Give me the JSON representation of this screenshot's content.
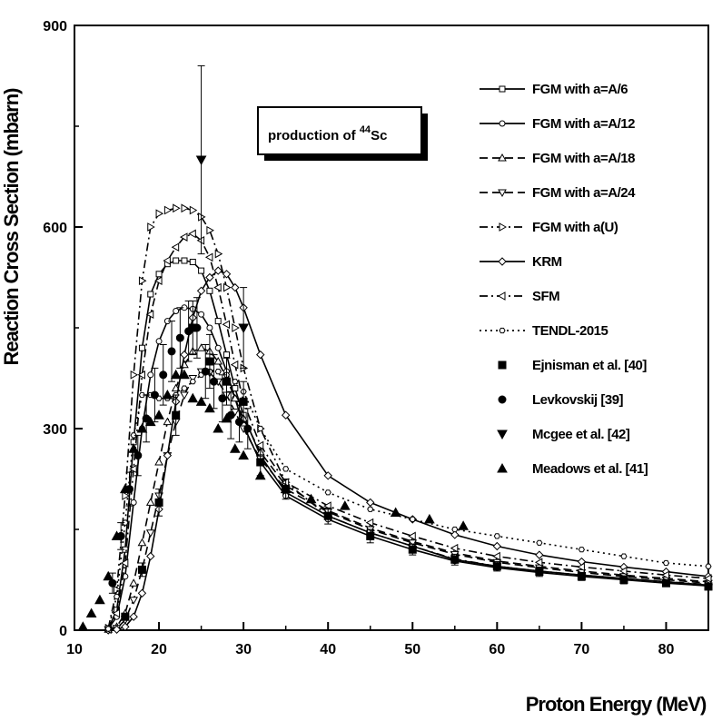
{
  "chart_data": {
    "type": "line",
    "title": "",
    "xlabel": "Proton Energy (MeV)",
    "ylabel": "Reaction Cross Section (mbarn)",
    "xlim": [
      10,
      85
    ],
    "ylim": [
      0,
      900
    ],
    "x_ticks": [
      10,
      20,
      30,
      40,
      50,
      60,
      70,
      80
    ],
    "y_ticks": [
      0,
      300,
      600,
      900
    ],
    "grid": false,
    "legend_position": "right",
    "annotation": {
      "prefix": "production of ",
      "superscript": "44",
      "suffix": "Sc"
    },
    "series": [
      {
        "name": "FGM with a=A/6",
        "style": "solid",
        "marker": "square",
        "x": [
          14,
          15,
          16,
          17,
          18,
          19,
          20,
          21,
          22,
          23,
          24,
          25,
          26,
          27,
          28,
          29,
          30,
          32,
          35,
          40,
          45,
          50,
          55,
          60,
          65,
          70,
          75,
          80,
          85
        ],
        "y": [
          2,
          30,
          120,
          280,
          420,
          500,
          530,
          545,
          550,
          550,
          548,
          535,
          505,
          460,
          410,
          360,
          320,
          260,
          205,
          170,
          145,
          125,
          105,
          95,
          88,
          82,
          77,
          72,
          67
        ]
      },
      {
        "name": "FGM with a=A/12",
        "style": "solid",
        "marker": "circle",
        "x": [
          14,
          15,
          16,
          17,
          18,
          19,
          20,
          21,
          22,
          23,
          24,
          25,
          26,
          27,
          28,
          29,
          30,
          32,
          35,
          40,
          45,
          50,
          55,
          60,
          65,
          70,
          75,
          80,
          85
        ],
        "y": [
          2,
          20,
          80,
          190,
          300,
          380,
          430,
          460,
          475,
          480,
          478,
          470,
          450,
          420,
          385,
          345,
          305,
          250,
          200,
          165,
          140,
          120,
          103,
          93,
          86,
          80,
          75,
          70,
          66
        ]
      },
      {
        "name": "FGM with a=A/18",
        "style": "dash",
        "marker": "triangle-up",
        "x": [
          14,
          15,
          16,
          17,
          18,
          19,
          20,
          21,
          22,
          23,
          24,
          25,
          26,
          27,
          28,
          29,
          30,
          32,
          35,
          40,
          45,
          50,
          55,
          60,
          65,
          70,
          75,
          80,
          85
        ],
        "y": [
          1,
          5,
          25,
          70,
          130,
          190,
          250,
          310,
          360,
          395,
          415,
          420,
          415,
          400,
          375,
          345,
          315,
          265,
          215,
          178,
          152,
          132,
          115,
          103,
          95,
          88,
          82,
          77,
          72
        ]
      },
      {
        "name": "FGM with a=A/24",
        "style": "dash",
        "marker": "triangle-down",
        "x": [
          14,
          15,
          16,
          17,
          18,
          19,
          20,
          21,
          22,
          23,
          24,
          25,
          26,
          27,
          28,
          29,
          30,
          32,
          35,
          40,
          45,
          50,
          55,
          60,
          65,
          70,
          75,
          80,
          85
        ],
        "y": [
          1,
          3,
          15,
          45,
          90,
          145,
          200,
          260,
          310,
          350,
          375,
          385,
          383,
          370,
          350,
          325,
          300,
          255,
          210,
          176,
          150,
          130,
          113,
          101,
          93,
          86,
          80,
          75,
          70
        ]
      },
      {
        "name": "FGM with a(U)",
        "style": "dashdot",
        "marker": "triangle-right",
        "x": [
          14,
          15,
          16,
          17,
          18,
          19,
          20,
          21,
          22,
          23,
          24,
          25,
          26,
          27,
          28,
          29,
          30,
          32,
          35,
          40,
          45,
          50,
          55,
          60,
          65,
          70,
          75,
          80,
          85
        ],
        "y": [
          3,
          60,
          200,
          380,
          520,
          600,
          620,
          625,
          628,
          628,
          625,
          615,
          595,
          560,
          510,
          450,
          390,
          300,
          220,
          170,
          145,
          125,
          106,
          95,
          88,
          82,
          77,
          72,
          68
        ]
      },
      {
        "name": "KRM",
        "style": "solid",
        "marker": "diamond",
        "x": [
          14,
          15,
          16,
          17,
          18,
          19,
          20,
          21,
          22,
          23,
          24,
          25,
          26,
          27,
          28,
          29,
          30,
          32,
          35,
          40,
          45,
          50,
          55,
          60,
          65,
          70,
          75,
          80,
          85
        ],
        "y": [
          0,
          1,
          5,
          20,
          55,
          110,
          180,
          260,
          340,
          410,
          465,
          505,
          525,
          535,
          530,
          510,
          480,
          410,
          320,
          230,
          190,
          165,
          142,
          125,
          112,
          102,
          94,
          87,
          80
        ]
      },
      {
        "name": "SFM",
        "style": "dashdot",
        "marker": "triangle-left",
        "x": [
          14,
          15,
          16,
          17,
          18,
          19,
          20,
          21,
          22,
          23,
          24,
          25,
          26,
          27,
          28,
          29,
          30,
          32,
          35,
          40,
          45,
          50,
          55,
          60,
          65,
          70,
          75,
          80,
          85
        ],
        "y": [
          1,
          25,
          100,
          240,
          380,
          470,
          520,
          550,
          570,
          585,
          590,
          580,
          555,
          510,
          455,
          395,
          340,
          275,
          220,
          185,
          160,
          140,
          122,
          110,
          101,
          94,
          88,
          82,
          77
        ]
      },
      {
        "name": "TENDL-2015",
        "style": "dot",
        "marker": "hexagon",
        "x": [
          14,
          15,
          16,
          17,
          18,
          19,
          20,
          21,
          22,
          23,
          24,
          25,
          26,
          27,
          28,
          29,
          30,
          32,
          35,
          40,
          45,
          50,
          55,
          60,
          65,
          70,
          75,
          80,
          85
        ],
        "y": [
          2,
          50,
          160,
          290,
          350,
          350,
          345,
          345,
          350,
          360,
          370,
          380,
          385,
          385,
          380,
          370,
          355,
          300,
          240,
          205,
          180,
          165,
          150,
          140,
          130,
          120,
          110,
          100,
          95
        ]
      },
      {
        "name": "Ejnisman et al. [40]",
        "style": "none",
        "marker": "filled-square",
        "x": [
          16,
          18,
          20,
          22,
          24,
          26,
          28,
          30,
          32,
          35,
          40,
          45,
          50,
          55,
          60,
          65,
          70,
          75,
          80,
          85
        ],
        "y": [
          20,
          90,
          190,
          320,
          450,
          400,
          370,
          340,
          250,
          210,
          170,
          140,
          120,
          105,
          95,
          87,
          80,
          75,
          70,
          65
        ],
        "yerr": [
          5,
          10,
          20,
          30,
          40,
          40,
          35,
          30,
          20,
          15,
          12,
          10,
          8,
          8,
          7,
          7,
          6,
          6,
          5,
          5
        ]
      },
      {
        "name": "Levkovskij [39]",
        "style": "none",
        "marker": "filled-circle",
        "x": [
          14.5,
          15.5,
          16.5,
          17.5,
          18.5,
          19.5,
          20.5,
          21.5,
          22.5,
          23.5,
          24.5,
          25.5,
          26.5,
          27.5,
          28.5,
          29.5,
          30.5
        ],
        "y": [
          70,
          140,
          210,
          260,
          315,
          350,
          380,
          415,
          435,
          445,
          450,
          385,
          370,
          345,
          320,
          310,
          300
        ],
        "yerr": [
          15,
          20,
          25,
          30,
          35,
          40,
          45,
          45,
          45,
          45,
          45,
          40,
          40,
          35,
          35,
          30,
          30
        ]
      },
      {
        "name": "Mcgee et al. [42]",
        "style": "none",
        "marker": "filled-triangle-down",
        "x": [
          25,
          30
        ],
        "y": [
          700,
          450
        ],
        "yerr": [
          140,
          60
        ]
      },
      {
        "name": "Meadows et al. [41]",
        "style": "none",
        "marker": "filled-triangle-up",
        "x": [
          11,
          12,
          13,
          14,
          15,
          16,
          17,
          18,
          19,
          20,
          21,
          22,
          23,
          24,
          25,
          26,
          27,
          28,
          29,
          30,
          32,
          35,
          38,
          42,
          48,
          52,
          56
        ],
        "y": [
          5,
          25,
          45,
          80,
          140,
          210,
          270,
          300,
          310,
          320,
          350,
          380,
          380,
          345,
          340,
          330,
          300,
          315,
          270,
          260,
          230,
          210,
          195,
          185,
          175,
          165,
          155
        ]
      }
    ]
  }
}
